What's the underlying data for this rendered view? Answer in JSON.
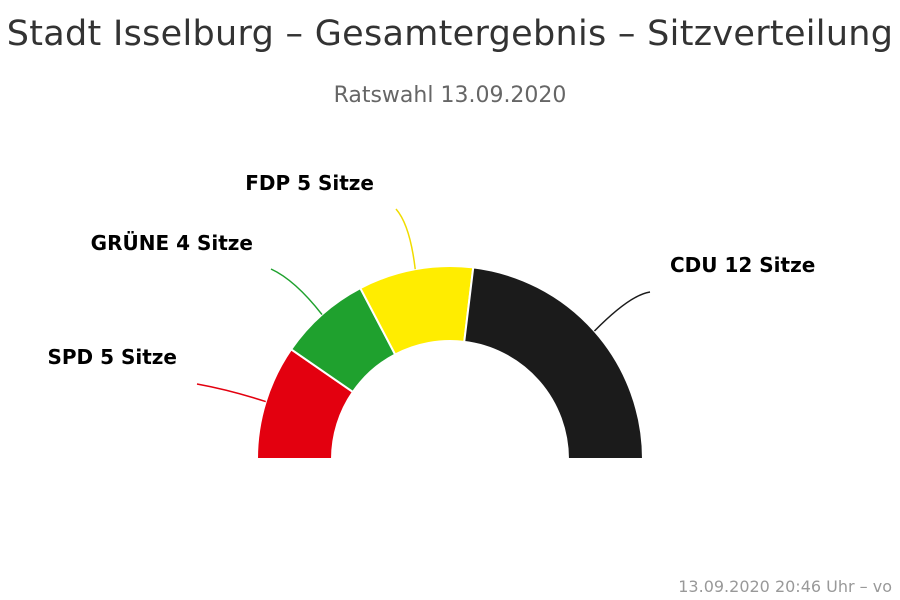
{
  "title": "Stadt Isselburg – Gesamtergebnis – Sitzverteilung",
  "subtitle": "Ratswahl 13.09.2020",
  "credit": "13.09.2020 20:46 Uhr – vo",
  "chart_data": {
    "type": "pie",
    "variant": "semicircle",
    "unit": "Sitze",
    "total": 26,
    "slices": [
      {
        "party": "SPD",
        "seats": 5,
        "label": "SPD 5 Sitze",
        "color": "#e3000f"
      },
      {
        "party": "GRÜNE",
        "seats": 4,
        "label": "GRÜNE 4 Sitze",
        "color": "#1fa12e"
      },
      {
        "party": "FDP",
        "seats": 5,
        "label": "FDP 5 Sitze",
        "color": "#ffed00"
      },
      {
        "party": "CDU",
        "seats": 12,
        "label": "CDU 12 Sitze",
        "color": "#1b1b1b"
      }
    ]
  }
}
